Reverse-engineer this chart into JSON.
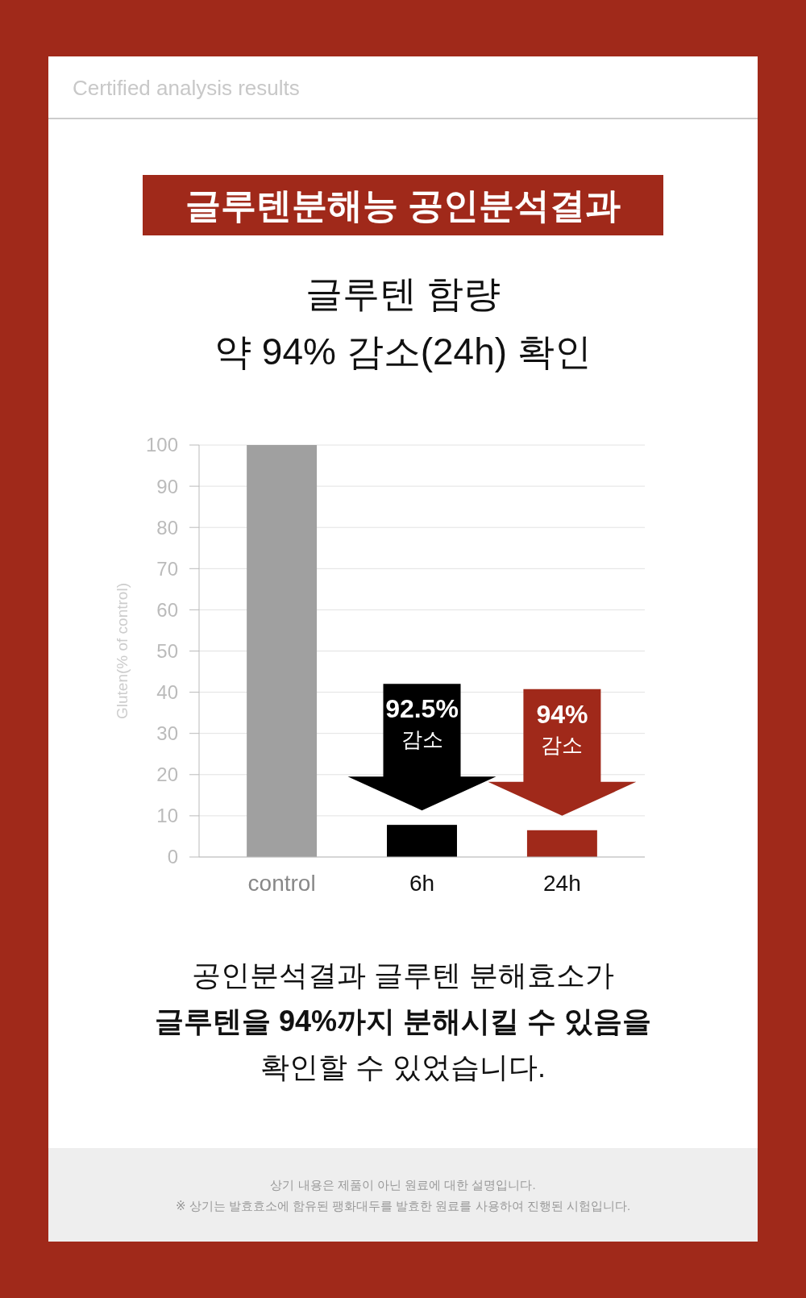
{
  "chart_data": {
    "type": "bar",
    "title": "글루텐분해능 공인분석결과",
    "subtitle": "글루텐 함량\n약 94% 감소(24h) 확인",
    "ylabel": "Gluten(% of control)",
    "categories": [
      "control",
      "6h",
      "24h"
    ],
    "values": [
      100,
      7.8,
      6.5
    ],
    "colors": [
      "#a0a0a0",
      "#000000",
      "#a0291a"
    ],
    "ylim": [
      0,
      100
    ],
    "yticks": [
      0,
      10,
      20,
      30,
      40,
      50,
      60,
      70,
      80,
      90,
      100
    ],
    "grid": "y",
    "annotations": [
      "Certified analysis results",
      "92.5%\n감소",
      "94%\n감소",
      "공인분석결과 글루텐 분해효소가\n글루텐을 94%까지 분해시킬 수 있음을\n확인할 수 있었습니다.",
      "상기 내용은 제품이 아닌 원료에 대한 설명입니다.\n※ 상기는 발효효소에 함유된 팽화대두를 발효한 원료를 사용하여 진행된 시험입니다."
    ]
  }
}
